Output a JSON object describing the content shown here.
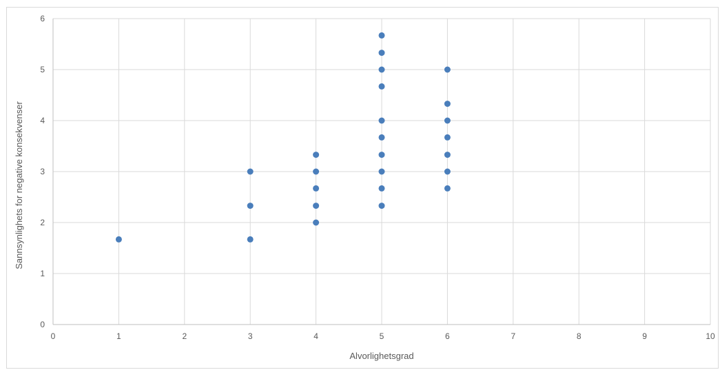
{
  "chart_data": {
    "type": "scatter",
    "title": "",
    "xlabel": "Alvorlighetsgrad",
    "ylabel": "Sannsynlighets for negative konsekvenser",
    "xlim": [
      0,
      10
    ],
    "ylim": [
      0,
      6
    ],
    "x_ticks": [
      "0",
      "1",
      "2",
      "3",
      "4",
      "5",
      "6",
      "7",
      "8",
      "9",
      "10"
    ],
    "y_ticks": [
      "0",
      "1",
      "2",
      "3",
      "4",
      "5",
      "6"
    ],
    "grid": true,
    "legend": "none",
    "marker_color": "#4a7ebb",
    "points": [
      {
        "x": 1,
        "y": 1.67
      },
      {
        "x": 3,
        "y": 1.67
      },
      {
        "x": 3,
        "y": 2.33
      },
      {
        "x": 3,
        "y": 3.0
      },
      {
        "x": 4,
        "y": 2.0
      },
      {
        "x": 4,
        "y": 2.33
      },
      {
        "x": 4,
        "y": 2.67
      },
      {
        "x": 4,
        "y": 3.0
      },
      {
        "x": 4,
        "y": 3.33
      },
      {
        "x": 5,
        "y": 2.33
      },
      {
        "x": 5,
        "y": 2.67
      },
      {
        "x": 5,
        "y": 3.0
      },
      {
        "x": 5,
        "y": 3.33
      },
      {
        "x": 5,
        "y": 3.67
      },
      {
        "x": 5,
        "y": 4.0
      },
      {
        "x": 5,
        "y": 4.67
      },
      {
        "x": 5,
        "y": 5.0
      },
      {
        "x": 5,
        "y": 5.33
      },
      {
        "x": 5,
        "y": 5.67
      },
      {
        "x": 6,
        "y": 2.67
      },
      {
        "x": 6,
        "y": 3.0
      },
      {
        "x": 6,
        "y": 3.33
      },
      {
        "x": 6,
        "y": 3.67
      },
      {
        "x": 6,
        "y": 4.0
      },
      {
        "x": 6,
        "y": 4.33
      },
      {
        "x": 6,
        "y": 5.0
      }
    ]
  }
}
